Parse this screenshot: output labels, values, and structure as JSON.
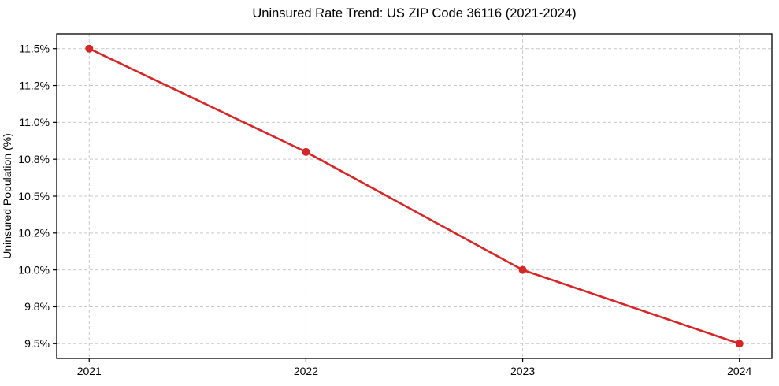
{
  "chart_data": {
    "type": "line",
    "title": "Uninsured Rate Trend: US ZIP Code 36116 (2021-2024)",
    "xlabel": "",
    "ylabel": "Uninsured Population (%)",
    "x": [
      2021,
      2022,
      2023,
      2024
    ],
    "values": [
      11.5,
      10.8,
      10.0,
      9.5
    ],
    "xlim": [
      2020.85,
      2024.15
    ],
    "ylim": [
      9.4,
      11.6
    ],
    "yticks": [
      {
        "value": 11.5,
        "label": "11.5%"
      },
      {
        "value": 11.25,
        "label": "11.2%"
      },
      {
        "value": 11.0,
        "label": "11.0%"
      },
      {
        "value": 10.75,
        "label": "10.8%"
      },
      {
        "value": 10.5,
        "label": "10.5%"
      },
      {
        "value": 10.25,
        "label": "10.2%"
      },
      {
        "value": 10.0,
        "label": "10.0%"
      },
      {
        "value": 9.75,
        "label": "9.8%"
      },
      {
        "value": 9.5,
        "label": "9.5%"
      }
    ],
    "xticks": [
      {
        "value": 2021,
        "label": "2021"
      },
      {
        "value": 2022,
        "label": "2022"
      },
      {
        "value": 2023,
        "label": "2023"
      },
      {
        "value": 2024,
        "label": "2024"
      }
    ],
    "grid": "dashed",
    "legend": "none",
    "colors": {
      "line": "#d62728",
      "marker": "#d62728",
      "grid": "#c9c9c9",
      "spine": "#000000",
      "tick": "#000000",
      "background": "#ffffff"
    }
  }
}
